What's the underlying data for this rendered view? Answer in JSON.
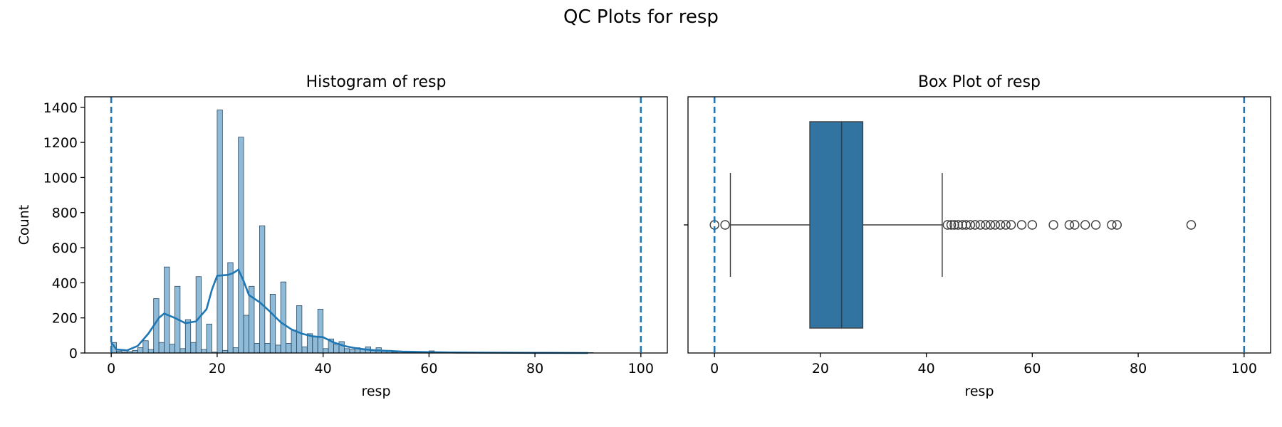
{
  "figure": {
    "suptitle": "QC Plots for resp"
  },
  "colors": {
    "bar": "#1f77b4",
    "box": "#3274a1",
    "threshold": "#1f77b4",
    "text": "#000000"
  },
  "chart_data": [
    {
      "type": "bar",
      "subtype": "histogram_with_kde",
      "title": "Histogram of resp",
      "xlabel": "resp",
      "ylabel": "Count",
      "xlim": [
        -5,
        105
      ],
      "ylim": [
        0,
        1460
      ],
      "xticks": [
        0,
        20,
        40,
        60,
        80,
        100
      ],
      "yticks": [
        0,
        200,
        400,
        600,
        800,
        1000,
        1200,
        1400
      ],
      "bin_width": 1,
      "bins": [
        [
          0,
          60
        ],
        [
          1,
          10
        ],
        [
          2,
          5
        ],
        [
          3,
          8
        ],
        [
          4,
          15
        ],
        [
          5,
          30
        ],
        [
          6,
          70
        ],
        [
          7,
          20
        ],
        [
          8,
          310
        ],
        [
          9,
          60
        ],
        [
          10,
          490
        ],
        [
          11,
          50
        ],
        [
          12,
          380
        ],
        [
          13,
          25
        ],
        [
          14,
          190
        ],
        [
          15,
          60
        ],
        [
          16,
          435
        ],
        [
          17,
          20
        ],
        [
          18,
          165
        ],
        [
          19,
          5
        ],
        [
          20,
          1385
        ],
        [
          21,
          15
        ],
        [
          22,
          515
        ],
        [
          23,
          30
        ],
        [
          24,
          1230
        ],
        [
          25,
          215
        ],
        [
          26,
          380
        ],
        [
          27,
          55
        ],
        [
          28,
          725
        ],
        [
          29,
          55
        ],
        [
          30,
          335
        ],
        [
          31,
          45
        ],
        [
          32,
          405
        ],
        [
          33,
          55
        ],
        [
          34,
          130
        ],
        [
          35,
          270
        ],
        [
          36,
          35
        ],
        [
          37,
          110
        ],
        [
          38,
          95
        ],
        [
          39,
          250
        ],
        [
          40,
          25
        ],
        [
          41,
          80
        ],
        [
          42,
          50
        ],
        [
          43,
          65
        ],
        [
          44,
          25
        ],
        [
          45,
          20
        ],
        [
          46,
          30
        ],
        [
          47,
          25
        ],
        [
          48,
          35
        ],
        [
          49,
          15
        ],
        [
          50,
          30
        ],
        [
          51,
          10
        ],
        [
          52,
          15
        ],
        [
          53,
          5
        ],
        [
          54,
          8
        ],
        [
          55,
          5
        ],
        [
          56,
          4
        ],
        [
          57,
          3
        ],
        [
          58,
          2
        ],
        [
          59,
          2
        ],
        [
          60,
          12
        ],
        [
          61,
          2
        ],
        [
          62,
          2
        ],
        [
          64,
          2
        ],
        [
          67,
          2
        ],
        [
          68,
          2
        ],
        [
          70,
          2
        ],
        [
          72,
          2
        ],
        [
          75,
          2
        ],
        [
          76,
          2
        ],
        [
          90,
          2
        ]
      ],
      "kde": [
        [
          0,
          60
        ],
        [
          1,
          20
        ],
        [
          3,
          15
        ],
        [
          5,
          40
        ],
        [
          7,
          110
        ],
        [
          9,
          200
        ],
        [
          10,
          225
        ],
        [
          12,
          200
        ],
        [
          14,
          170
        ],
        [
          16,
          180
        ],
        [
          18,
          250
        ],
        [
          19,
          360
        ],
        [
          20,
          440
        ],
        [
          22,
          445
        ],
        [
          23,
          455
        ],
        [
          24,
          475
        ],
        [
          25,
          410
        ],
        [
          26,
          330
        ],
        [
          28,
          290
        ],
        [
          30,
          235
        ],
        [
          32,
          175
        ],
        [
          34,
          135
        ],
        [
          36,
          110
        ],
        [
          38,
          95
        ],
        [
          40,
          90
        ],
        [
          42,
          60
        ],
        [
          44,
          40
        ],
        [
          46,
          28
        ],
        [
          48,
          20
        ],
        [
          50,
          15
        ],
        [
          55,
          8
        ],
        [
          60,
          5
        ],
        [
          65,
          3
        ],
        [
          70,
          2
        ],
        [
          80,
          1
        ],
        [
          90,
          0
        ]
      ],
      "thresholds": [
        0,
        100
      ]
    },
    {
      "type": "box",
      "title": "Box Plot of resp",
      "xlabel": "resp",
      "xlim": [
        -5,
        105
      ],
      "xticks": [
        0,
        20,
        40,
        60,
        80,
        100
      ],
      "q1": 18,
      "median": 24,
      "q3": 28,
      "whisker_low": 3,
      "whisker_high": 43,
      "outliers": [
        0,
        2,
        44,
        44.7,
        45.3,
        46,
        46.8,
        47.5,
        48.3,
        49.2,
        50.2,
        51.2,
        52.1,
        53,
        54,
        55,
        56,
        58,
        60,
        64,
        67,
        68,
        70,
        72,
        75,
        76,
        90
      ],
      "thresholds": [
        0,
        100
      ]
    }
  ]
}
